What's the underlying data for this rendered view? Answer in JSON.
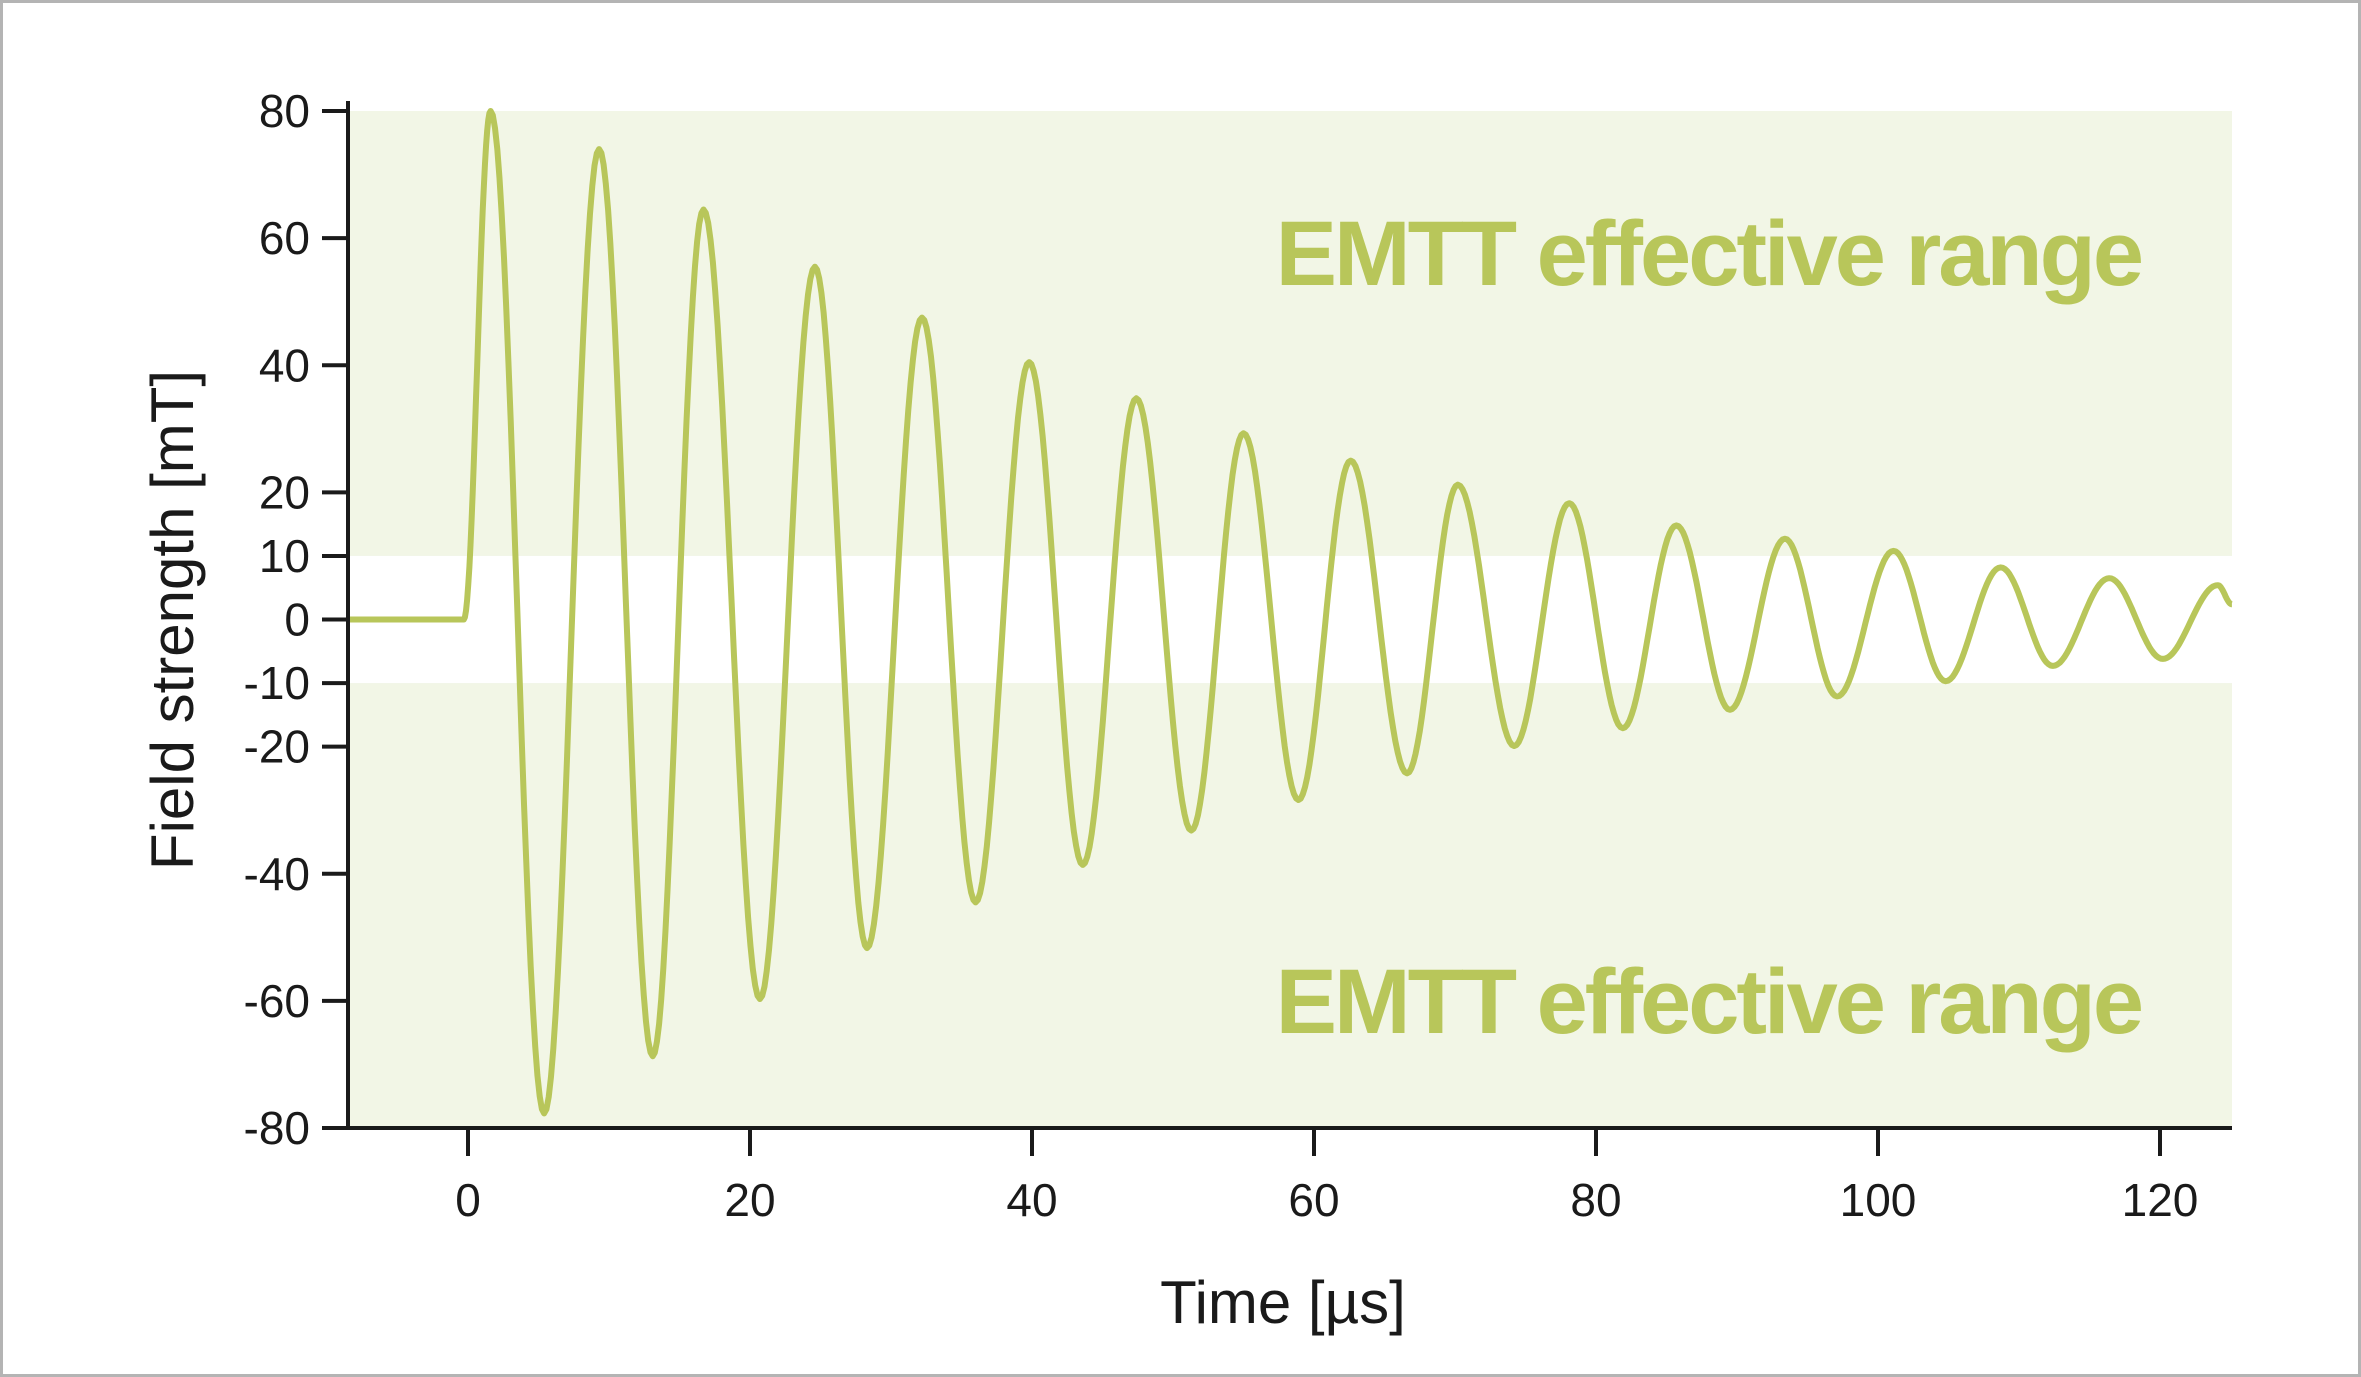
{
  "chart_data": {
    "type": "line",
    "title": "",
    "xlabel": "Time [µs]",
    "ylabel": "Field strength [mT]",
    "xlim": [
      -8.5,
      125.1
    ],
    "ylim": [
      -80,
      80
    ],
    "xticks": [
      0,
      20,
      40,
      60,
      80,
      100,
      120
    ],
    "yticks": [
      80,
      60,
      40,
      20,
      10,
      0,
      -10,
      -20,
      -40,
      -60,
      -80
    ],
    "grid": false,
    "bands": [
      {
        "label": "EMTT effective range",
        "from": 10,
        "to": 80,
        "color": "#f2f6e6"
      },
      {
        "label": "EMTT effective range",
        "from": -80,
        "to": -10,
        "color": "#f2f6e6"
      }
    ],
    "series": [
      {
        "name": "Field strength",
        "color": "#b8c65a",
        "description_points": "extrema of damped oscillation (t in µs, value in mT)",
        "points": [
          [
            -8.5,
            0
          ],
          [
            -0.3,
            0
          ],
          [
            1.6,
            80
          ],
          [
            5.4,
            -77.7
          ],
          [
            9.3,
            74
          ],
          [
            13.1,
            -68.7
          ],
          [
            16.7,
            64.5
          ],
          [
            20.7,
            -59.7
          ],
          [
            24.6,
            55.5
          ],
          [
            28.3,
            -51.7
          ],
          [
            32.2,
            47.5
          ],
          [
            36.0,
            -44.5
          ],
          [
            39.8,
            40.5
          ],
          [
            43.6,
            -38.6
          ],
          [
            47.4,
            34.8
          ],
          [
            51.3,
            -33.2
          ],
          [
            55.0,
            29.3
          ],
          [
            58.9,
            -28.4
          ],
          [
            62.6,
            25
          ],
          [
            66.6,
            -24.2
          ],
          [
            70.2,
            21.2
          ],
          [
            74.2,
            -19.9
          ],
          [
            78.1,
            18.3
          ],
          [
            81.9,
            -17.1
          ],
          [
            85.7,
            14.8
          ],
          [
            89.5,
            -14.2
          ],
          [
            93.4,
            12.7
          ],
          [
            97.1,
            -12.1
          ],
          [
            101.1,
            10.8
          ],
          [
            104.8,
            -9.7
          ],
          [
            108.7,
            8.2
          ],
          [
            112.4,
            -7.3
          ],
          [
            116.4,
            6.5
          ],
          [
            120.2,
            -6.2
          ],
          [
            124.1,
            5.4
          ],
          [
            125.1,
            2.4
          ]
        ]
      }
    ]
  }
}
